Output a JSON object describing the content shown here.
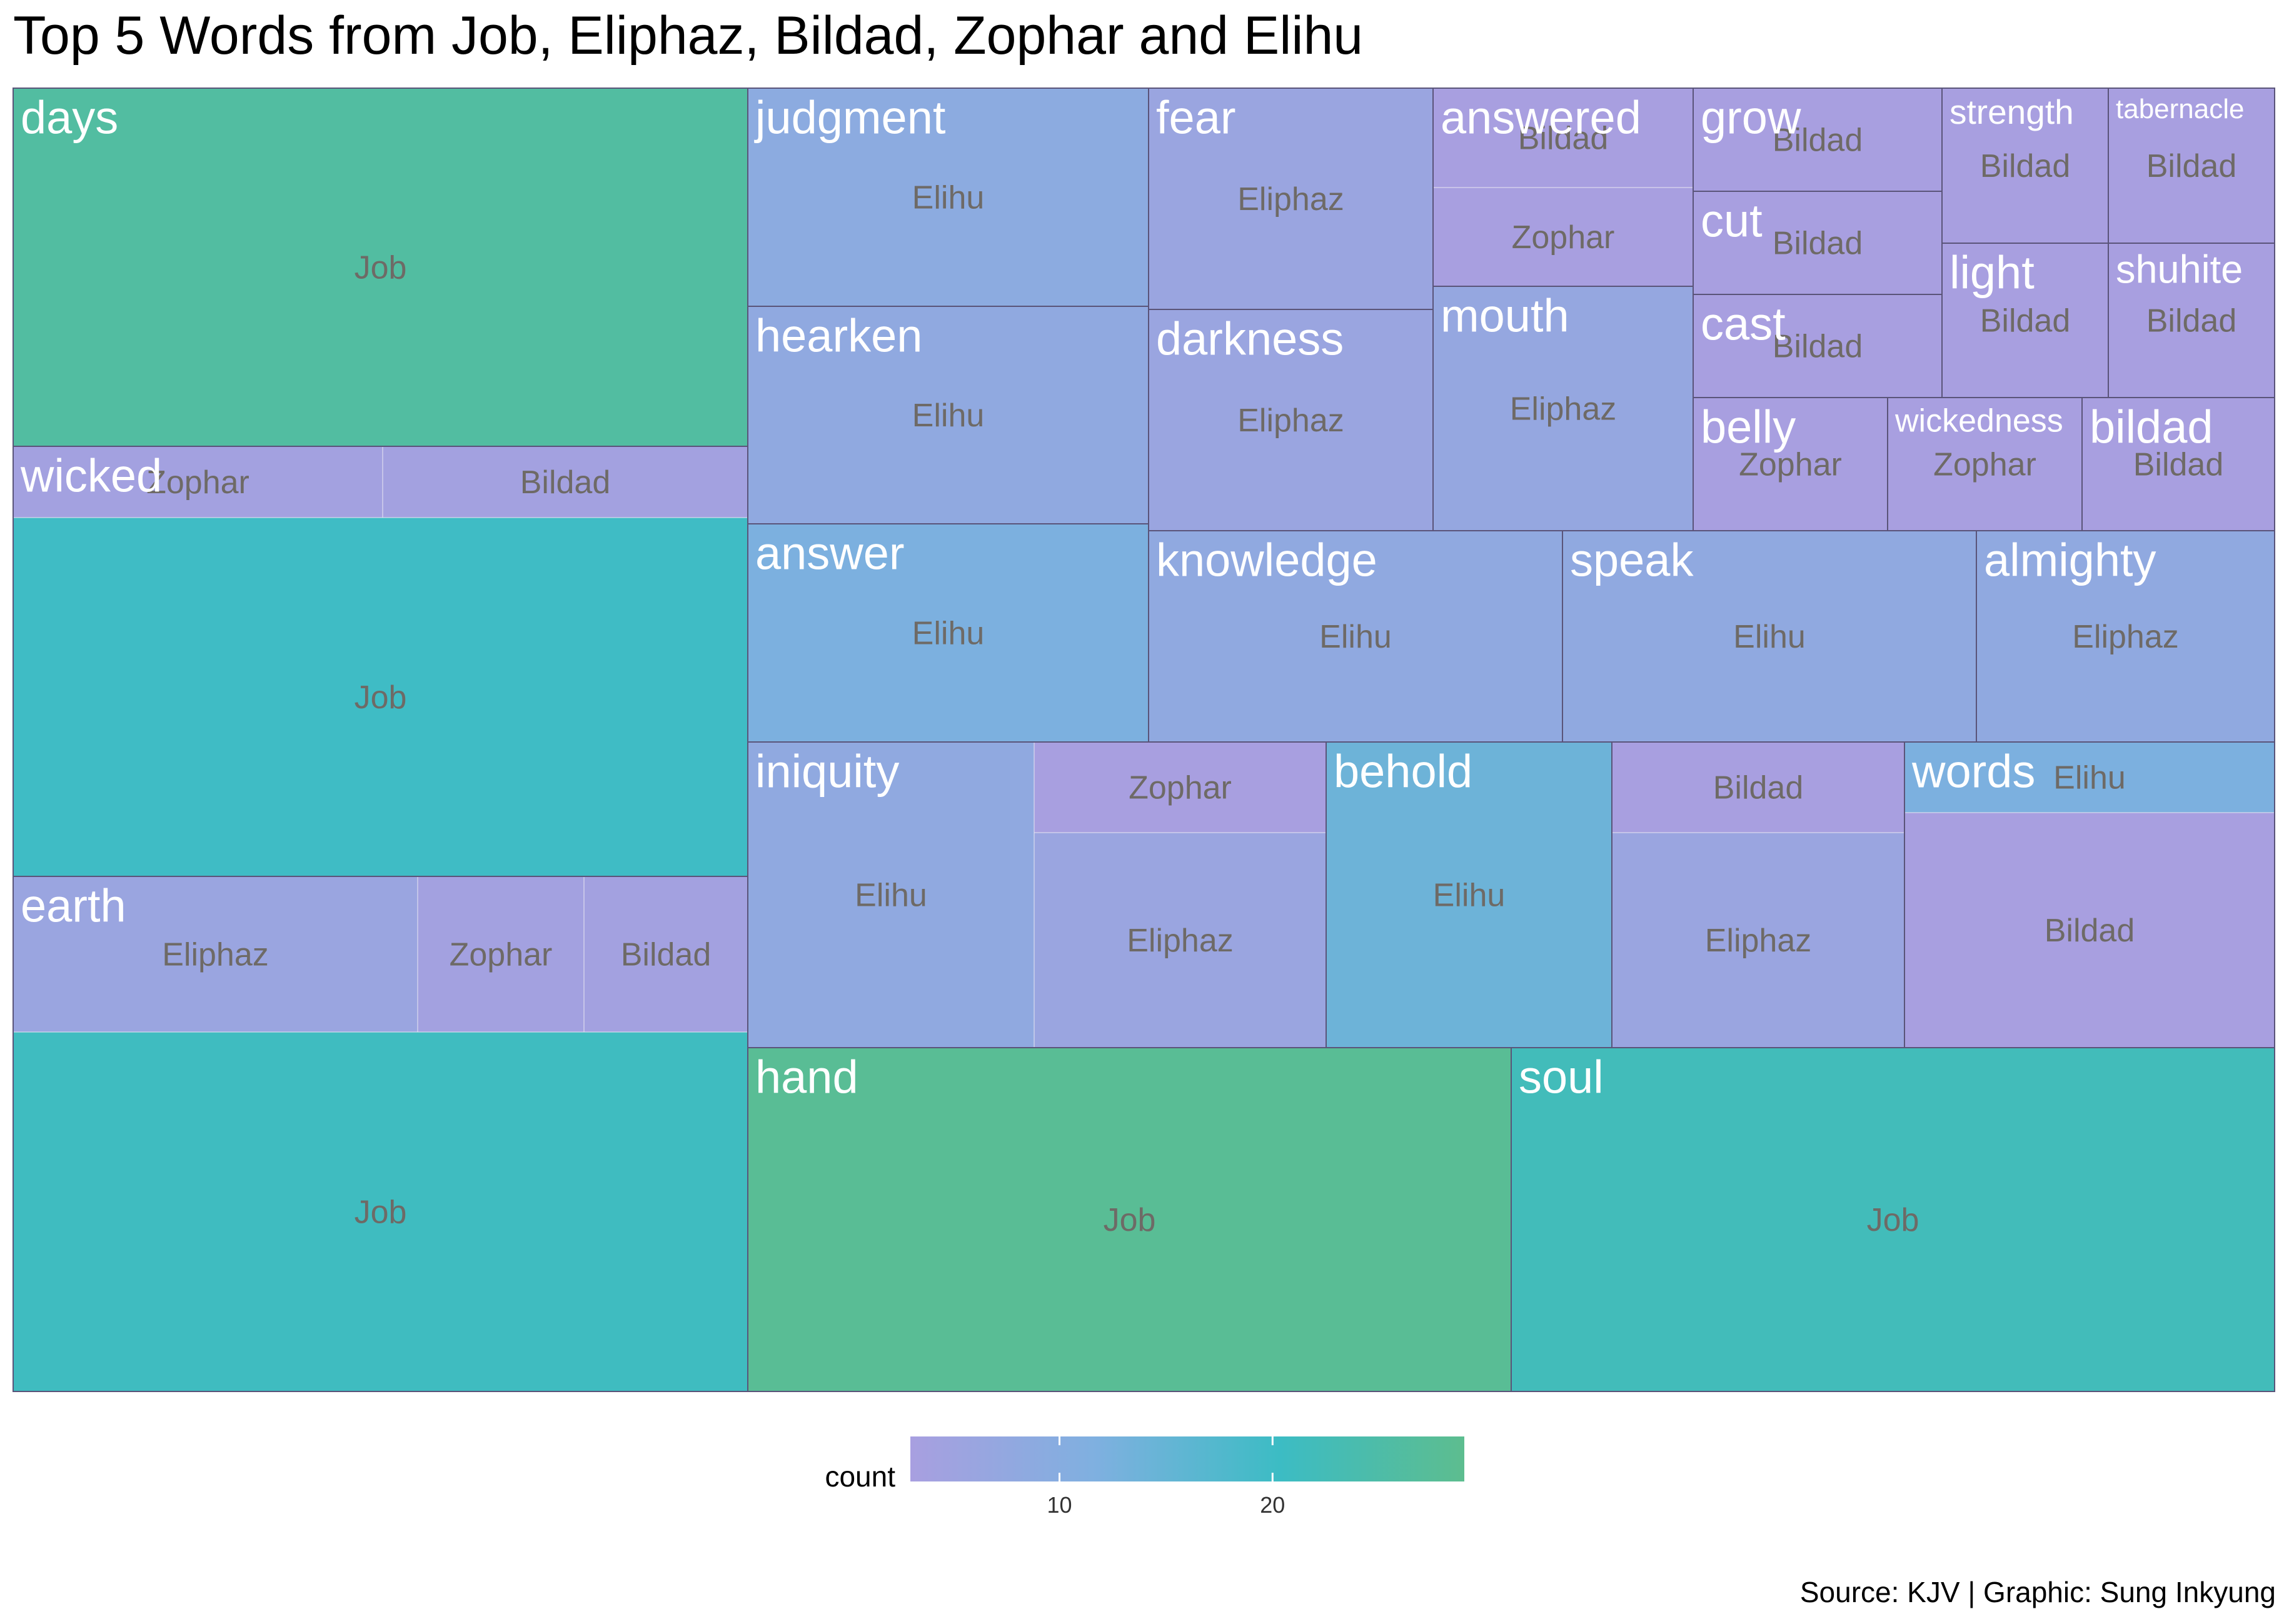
{
  "chart_data": {
    "type": "treemap",
    "title": "Top 5 Words from Job, Eliphaz, Bildad, Zophar and Elihu",
    "caption": "Source: KJV | Graphic: Sung Inkyung",
    "legend": {
      "title": "count",
      "ticks": [
        10,
        20
      ],
      "range": [
        3,
        29
      ],
      "position": "bottom",
      "colors": [
        "#a89fe0",
        "#7fb0e0",
        "#3cbcc4",
        "#5dbd8f"
      ]
    },
    "groups": [
      {
        "word": "days",
        "cells": [
          {
            "speaker": "Job",
            "count": 26
          }
        ]
      },
      {
        "word": "wicked",
        "cells": [
          {
            "speaker": "Job",
            "count": 20
          },
          {
            "speaker": "Zophar",
            "count": 4
          },
          {
            "speaker": "Bildad",
            "count": 4
          }
        ]
      },
      {
        "word": "earth",
        "cells": [
          {
            "speaker": "Job",
            "count": 21
          },
          {
            "speaker": "Eliphaz",
            "count": 6
          },
          {
            "speaker": "Zophar",
            "count": 4
          },
          {
            "speaker": "Bildad",
            "count": 4
          }
        ]
      },
      {
        "word": "judgment",
        "cells": [
          {
            "speaker": "Elihu",
            "count": 9
          }
        ]
      },
      {
        "word": "hearken",
        "cells": [
          {
            "speaker": "Elihu",
            "count": 8
          }
        ]
      },
      {
        "word": "answer",
        "cells": [
          {
            "speaker": "Elihu",
            "count": 12
          }
        ]
      },
      {
        "word": "fear",
        "cells": [
          {
            "speaker": "Eliphaz",
            "count": 6
          }
        ]
      },
      {
        "word": "darkness",
        "cells": [
          {
            "speaker": "Eliphaz",
            "count": 6
          }
        ]
      },
      {
        "word": "answered",
        "cells": [
          {
            "speaker": "Bildad",
            "count": 3
          },
          {
            "speaker": "Zophar",
            "count": 3
          }
        ]
      },
      {
        "word": "mouth",
        "cells": [
          {
            "speaker": "Eliphaz",
            "count": 7
          }
        ]
      },
      {
        "word": "grow",
        "cells": [
          {
            "speaker": "Bildad",
            "count": 3
          }
        ]
      },
      {
        "word": "cut",
        "cells": [
          {
            "speaker": "Bildad",
            "count": 3
          }
        ]
      },
      {
        "word": "cast",
        "cells": [
          {
            "speaker": "Bildad",
            "count": 3
          }
        ]
      },
      {
        "word": "strength",
        "cells": [
          {
            "speaker": "Bildad",
            "count": 3
          }
        ]
      },
      {
        "word": "tabernacle",
        "cells": [
          {
            "speaker": "Bildad",
            "count": 3
          }
        ]
      },
      {
        "word": "light",
        "cells": [
          {
            "speaker": "Bildad",
            "count": 3
          }
        ]
      },
      {
        "word": "shuhite",
        "cells": [
          {
            "speaker": "Bildad",
            "count": 3
          }
        ]
      },
      {
        "word": "belly",
        "cells": [
          {
            "speaker": "Zophar",
            "count": 3
          }
        ]
      },
      {
        "word": "wickedness",
        "cells": [
          {
            "speaker": "Zophar",
            "count": 3
          }
        ]
      },
      {
        "word": "bildad",
        "cells": [
          {
            "speaker": "Bildad",
            "count": 3
          }
        ]
      },
      {
        "word": "knowledge",
        "cells": [
          {
            "speaker": "Elihu",
            "count": 8
          }
        ]
      },
      {
        "word": "speak",
        "cells": [
          {
            "speaker": "Elihu",
            "count": 8
          }
        ]
      },
      {
        "word": "almighty",
        "cells": [
          {
            "speaker": "Eliphaz",
            "count": 8
          }
        ]
      },
      {
        "word": "iniquity",
        "cells": [
          {
            "speaker": "Elihu",
            "count": 8
          },
          {
            "speaker": "Zophar",
            "count": 3
          },
          {
            "speaker": "Eliphaz",
            "count": 6
          }
        ]
      },
      {
        "word": "behold",
        "cells": [
          {
            "speaker": "Elihu",
            "count": 14
          }
        ]
      },
      {
        "word": "words",
        "cells": [
          {
            "speaker": "Bildad",
            "count": 3
          },
          {
            "speaker": "Elihu",
            "count": 12
          }
        ]
      },
      {
        "word": "hand",
        "cells": [
          {
            "speaker": "Job",
            "count": 28
          }
        ]
      },
      {
        "word": "soul",
        "cells": [
          {
            "speaker": "Job",
            "count": 22
          }
        ]
      }
    ]
  }
}
